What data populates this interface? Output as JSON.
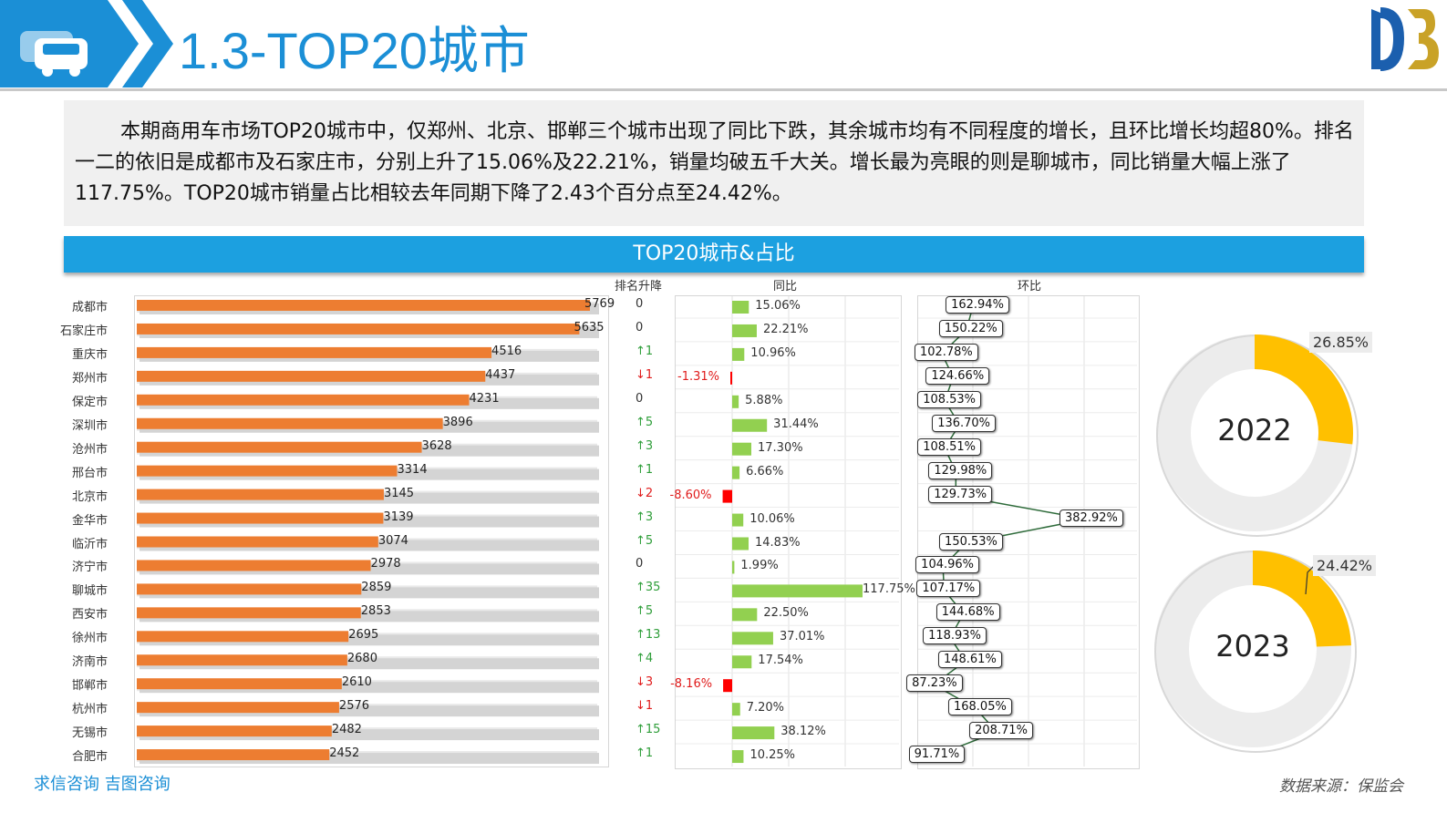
{
  "header": {
    "title": "1.3-TOP20城市"
  },
  "summary": "本期商用车市场TOP20城市中，仅郑州、北京、邯郸三个城市出现了同比下跌，其余城市均有不同程度的增长，且环比增长均超80%。排名一二的依旧是成都市及石家庄市，分别上升了15.06%及22.21%，销量均破五千大关。增长最为亮眼的则是聊城市，同比销量大幅上涨了117.75%。TOP20城市销量占比相较去年同期下降了2.43个百分点至24.42%。",
  "section_title": "TOP20城市&占比",
  "columns": {
    "rank_change": "排名升降",
    "yoy": "同比",
    "mom": "环比"
  },
  "colors": {
    "bar": "#ed7d31",
    "yoy_pos": "#92d050",
    "yoy_neg": "#ff0000",
    "donut": "#ffc000",
    "donut_rest": "#ececec",
    "accent": "#1ca0e0"
  },
  "chart_data": [
    {
      "type": "bar",
      "orientation": "horizontal",
      "categories": [
        "成都市",
        "石家庄市",
        "重庆市",
        "郑州市",
        "保定市",
        "深圳市",
        "沧州市",
        "邢台市",
        "北京市",
        "金华市",
        "临沂市",
        "济宁市",
        "聊城市",
        "西安市",
        "徐州市",
        "济南市",
        "邯郸市",
        "杭州市",
        "无锡市",
        "合肥市"
      ],
      "values": [
        5769,
        5635,
        4516,
        4437,
        4231,
        3896,
        3628,
        3314,
        3145,
        3139,
        3074,
        2978,
        2859,
        2853,
        2695,
        2680,
        2610,
        2576,
        2482,
        2452
      ],
      "rank_change": [
        "0",
        "0",
        "↑1",
        "↓1",
        "0",
        "↑5",
        "↑3",
        "↑1",
        "↓2",
        "↑3",
        "↑5",
        "0",
        "↑35",
        "↑5",
        "↑13",
        "↑4",
        "↓3",
        "↓1",
        "↑15",
        "↑1"
      ],
      "xlim": [
        0,
        6000
      ]
    },
    {
      "type": "bar",
      "orientation": "horizontal",
      "name": "同比",
      "values": [
        15.06,
        22.21,
        10.96,
        -1.31,
        5.88,
        31.44,
        17.3,
        6.66,
        -8.6,
        10.06,
        14.83,
        1.99,
        117.75,
        22.5,
        37.01,
        17.54,
        -8.16,
        7.2,
        38.12,
        10.25
      ],
      "labels": [
        "15.06%",
        "22.21%",
        "10.96%",
        "-1.31%",
        "5.88%",
        "31.44%",
        "17.30%",
        "6.66%",
        "-8.60%",
        "10.06%",
        "14.83%",
        "1.99%",
        "117.75%",
        "22.50%",
        "37.01%",
        "17.54%",
        "-8.16%",
        "7.20%",
        "38.12%",
        "10.25%"
      ]
    },
    {
      "type": "line",
      "orientation": "vertical",
      "name": "环比",
      "values": [
        162.94,
        150.22,
        102.78,
        124.66,
        108.53,
        136.7,
        108.51,
        129.98,
        129.73,
        382.92,
        150.53,
        104.96,
        107.17,
        144.68,
        118.93,
        148.61,
        87.23,
        168.05,
        208.71,
        91.71
      ],
      "labels": [
        "162.94%",
        "150.22%",
        "102.78%",
        "124.66%",
        "108.53%",
        "136.70%",
        "108.51%",
        "129.98%",
        "129.73%",
        "382.92%",
        "150.53%",
        "104.96%",
        "107.17%",
        "144.68%",
        "118.93%",
        "148.61%",
        "87.23%",
        "168.05%",
        "208.71%",
        "91.71%"
      ]
    },
    {
      "type": "pie",
      "donut": true,
      "center_label": "2022",
      "values": [
        26.85,
        73.15
      ],
      "label": "26.85%"
    },
    {
      "type": "pie",
      "donut": true,
      "center_label": "2023",
      "values": [
        24.42,
        75.58
      ],
      "label": "24.42%"
    }
  ],
  "footer": {
    "left": "求信咨询  吉图咨询",
    "right": "数据来源：保监会"
  }
}
